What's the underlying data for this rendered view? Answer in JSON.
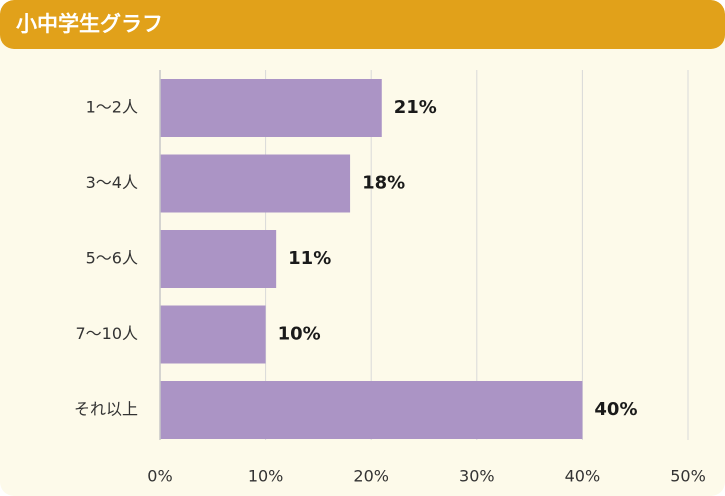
{
  "header": {
    "title": "小中学生グラフ"
  },
  "colors": {
    "header_bg": "#e1a11a",
    "card_bg": "#fdfaea",
    "bar": "#ab94c5",
    "grid": "#d9d9d9",
    "axis": "#c8c8c8",
    "text": "#333333",
    "value_text": "#1a1a1a"
  },
  "chart_data": {
    "type": "bar",
    "orientation": "horizontal",
    "title": "",
    "xlabel": "",
    "ylabel": "",
    "categories": [
      "1〜2人",
      "3〜4人",
      "5〜6人",
      "7〜10人",
      "それ以上"
    ],
    "values": [
      21,
      18,
      11,
      10,
      40
    ],
    "value_labels": [
      "21%",
      "18%",
      "11%",
      "10%",
      "40%"
    ],
    "xlim": [
      0,
      50
    ],
    "xticks": [
      0,
      10,
      20,
      30,
      40,
      50
    ],
    "xtick_labels": [
      "0%",
      "10%",
      "20%",
      "30%",
      "40%",
      "50%"
    ],
    "grid": "vertical",
    "legend": "none"
  }
}
